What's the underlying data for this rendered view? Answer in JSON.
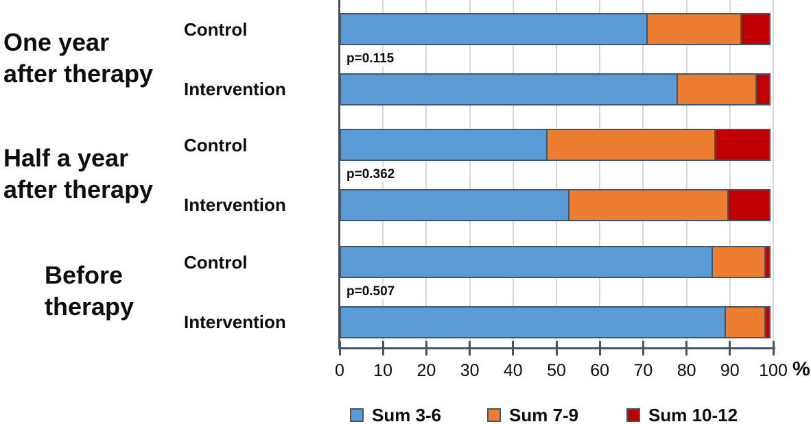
{
  "chart_data": {
    "type": "bar",
    "orientation": "horizontal",
    "stacked": true,
    "title": "",
    "xlabel": "%",
    "ylabel": "",
    "xlim": [
      0,
      100
    ],
    "x_ticks": [
      0,
      10,
      20,
      30,
      40,
      50,
      60,
      70,
      80,
      90,
      100
    ],
    "grid": true,
    "legend_position": "bottom",
    "series": [
      {
        "name": "Sum 3-6",
        "color": "#5B9BD5"
      },
      {
        "name": "Sum 7-9",
        "color": "#ED7D31"
      },
      {
        "name": "Sum 10-12",
        "color": "#C00000"
      }
    ],
    "groups": [
      {
        "label_lines": [
          "One year",
          "after therapy"
        ],
        "p_value": "p=0.115",
        "bars": [
          {
            "label": "Control",
            "values": [
              71,
              22,
              7
            ]
          },
          {
            "label": "Intervention",
            "values": [
              78,
              18.5,
              3.5
            ]
          }
        ]
      },
      {
        "label_lines": [
          "Half a year",
          "after therapy"
        ],
        "p_value": "p=0.362",
        "bars": [
          {
            "label": "Control",
            "values": [
              48,
              39,
              13
            ]
          },
          {
            "label": "Intervention",
            "values": [
              53,
              37,
              10
            ]
          }
        ]
      },
      {
        "label_lines": [
          "Before",
          "therapy"
        ],
        "p_value": "p=0.507",
        "bars": [
          {
            "label": "Control",
            "values": [
              86,
              12.5,
              1.5
            ]
          },
          {
            "label": "Intervention",
            "values": [
              89,
              9.5,
              1.5
            ]
          }
        ]
      }
    ],
    "colors": {
      "bar_border": "#44546A",
      "axis": "#44546A",
      "gridline": "#D8D8D8",
      "text": "#0D0D0D",
      "background": "#FFFFFF"
    }
  }
}
